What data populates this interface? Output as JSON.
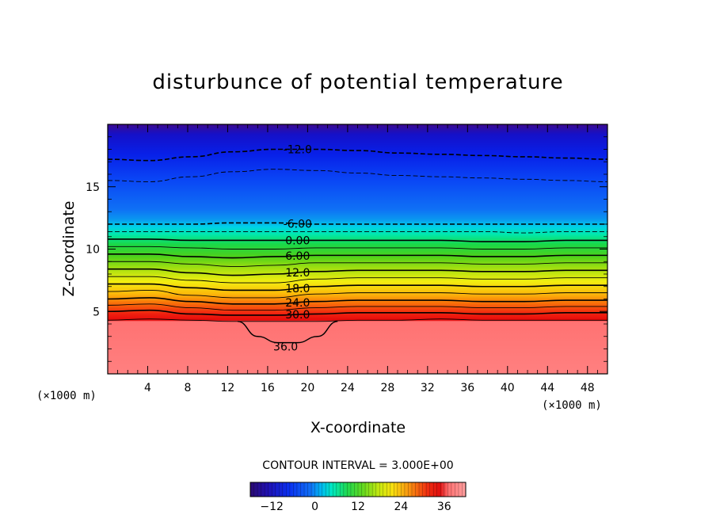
{
  "chart_data": {
    "type": "heatmap",
    "title": "disturbunce of potential temperature",
    "xlabel": "X-coordinate",
    "ylabel": "Z-coordinate",
    "x_unit": "(×1000 m)",
    "y_unit": "(×1000 m)",
    "xlim": [
      0,
      50
    ],
    "ylim": [
      0,
      20
    ],
    "x_ticks": [
      4,
      8,
      12,
      16,
      20,
      24,
      28,
      32,
      36,
      40,
      44,
      48
    ],
    "y_ticks": [
      5,
      10,
      15
    ],
    "contour_interval_label": "CONTOUR INTERVAL = 3.000E+00",
    "contour_interval": 3.0,
    "colorbar": {
      "range": [
        -18,
        42
      ],
      "ticks": [
        -12,
        0,
        12,
        24,
        36
      ]
    },
    "contours": [
      {
        "value": -12,
        "label": "-12.0",
        "z": [
          17.2,
          17.1,
          17.4,
          17.8,
          18.0,
          18.0,
          17.9,
          17.7,
          17.6,
          17.5,
          17.4,
          17.3,
          17.2
        ],
        "dashed": true
      },
      {
        "value": -9,
        "label": "",
        "z": [
          15.5,
          15.4,
          15.8,
          16.2,
          16.4,
          16.3,
          16.1,
          15.9,
          15.8,
          15.7,
          15.6,
          15.5,
          15.4
        ],
        "dashed": true
      },
      {
        "value": -6,
        "label": "-6.00",
        "z": [
          12.0,
          12.0,
          12.0,
          12.1,
          12.1,
          12.0,
          12.0,
          12.0,
          12.0,
          12.0,
          12.0,
          12.0,
          12.0
        ],
        "dashed": true
      },
      {
        "value": -3,
        "label": "",
        "z": [
          11.4,
          11.4,
          11.4,
          11.4,
          11.4,
          11.4,
          11.4,
          11.4,
          11.4,
          11.4,
          11.3,
          11.4,
          11.4
        ],
        "dashed": true
      },
      {
        "value": 0,
        "label": "0.00",
        "z": [
          10.8,
          10.8,
          10.7,
          10.7,
          10.7,
          10.7,
          10.7,
          10.7,
          10.7,
          10.6,
          10.6,
          10.7,
          10.7
        ],
        "dashed": false
      },
      {
        "value": 3,
        "label": "",
        "z": [
          10.2,
          10.2,
          10.1,
          10.0,
          10.0,
          10.1,
          10.1,
          10.1,
          10.1,
          10.0,
          10.0,
          10.1,
          10.1
        ],
        "dashed": false
      },
      {
        "value": 6,
        "label": "6.00",
        "z": [
          9.6,
          9.6,
          9.4,
          9.3,
          9.4,
          9.5,
          9.5,
          9.5,
          9.5,
          9.4,
          9.4,
          9.5,
          9.5
        ],
        "dashed": false
      },
      {
        "value": 9,
        "label": "",
        "z": [
          9.0,
          9.0,
          8.8,
          8.6,
          8.7,
          8.9,
          8.9,
          8.9,
          8.9,
          8.8,
          8.8,
          8.9,
          8.9
        ],
        "dashed": false
      },
      {
        "value": 12,
        "label": "12.0",
        "z": [
          8.4,
          8.4,
          8.1,
          7.9,
          8.0,
          8.2,
          8.3,
          8.3,
          8.3,
          8.2,
          8.2,
          8.3,
          8.3
        ],
        "dashed": false
      },
      {
        "value": 15,
        "label": "",
        "z": [
          7.8,
          7.8,
          7.5,
          7.3,
          7.3,
          7.6,
          7.7,
          7.7,
          7.7,
          7.6,
          7.6,
          7.7,
          7.7
        ],
        "dashed": false
      },
      {
        "value": 18,
        "label": "18.0",
        "z": [
          7.2,
          7.2,
          6.9,
          6.7,
          6.7,
          7.0,
          7.1,
          7.1,
          7.1,
          7.0,
          7.0,
          7.1,
          7.1
        ],
        "dashed": false
      },
      {
        "value": 21,
        "label": "",
        "z": [
          6.6,
          6.7,
          6.3,
          6.1,
          6.1,
          6.4,
          6.5,
          6.5,
          6.5,
          6.4,
          6.4,
          6.5,
          6.5
        ],
        "dashed": false
      },
      {
        "value": 24,
        "label": "24.0",
        "z": [
          6.0,
          6.1,
          5.8,
          5.6,
          5.6,
          5.8,
          5.9,
          5.9,
          5.9,
          5.8,
          5.8,
          5.9,
          5.9
        ],
        "dashed": false
      },
      {
        "value": 27,
        "label": "",
        "z": [
          5.5,
          5.6,
          5.3,
          5.1,
          5.1,
          5.3,
          5.4,
          5.4,
          5.4,
          5.3,
          5.3,
          5.4,
          5.4
        ],
        "dashed": false
      },
      {
        "value": 30,
        "label": "30.0",
        "z": [
          5.0,
          5.1,
          4.8,
          4.7,
          4.7,
          4.8,
          4.9,
          4.9,
          4.9,
          4.8,
          4.8,
          4.9,
          4.9
        ],
        "dashed": false
      },
      {
        "value": 33,
        "label": "",
        "z": [
          4.3,
          4.4,
          4.3,
          4.2,
          4.2,
          4.2,
          4.3,
          4.3,
          4.4,
          4.3,
          4.3,
          4.3,
          4.3
        ],
        "dashed": false
      }
    ],
    "anomaly_36": {
      "label": "36.0",
      "x": [
        13,
        15,
        17,
        19,
        21,
        23
      ],
      "z": [
        4.2,
        3.0,
        2.5,
        2.5,
        3.0,
        4.2
      ]
    }
  },
  "colors": {
    "frame": "#000000",
    "background": "#ffffff"
  }
}
